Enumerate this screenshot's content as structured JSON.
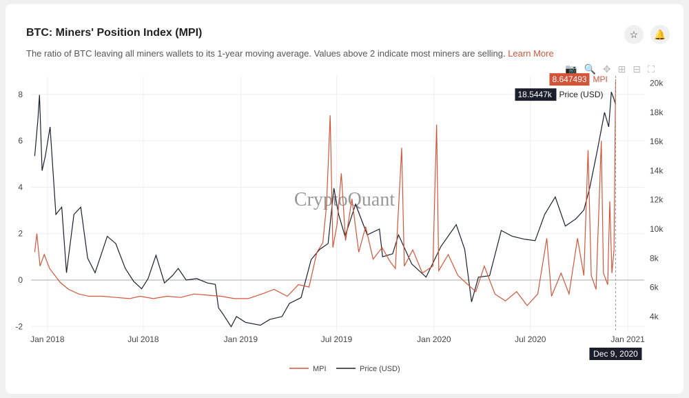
{
  "header": {
    "title": "BTC: Miners' Position Index (MPI)",
    "description": "The ratio of BTC leaving all miners wallets to its 1-year moving average. Values above 2 indicate most miners are selling.",
    "learn_more": "Learn More"
  },
  "watermark": "CryptoQuant",
  "tooltip": {
    "mpi_value": "8.647493",
    "mpi_label": "MPI",
    "price_value": "18.5447k",
    "price_label": "Price (USD)",
    "date": "Dec 9, 2020"
  },
  "colors": {
    "mpi": "#d2553a",
    "price": "#1a1f2b"
  },
  "chart_data": {
    "type": "line",
    "title": "BTC: Miners' Position Index (MPI)",
    "x_ticks": [
      "Jan 2018",
      "Jul 2018",
      "Jan 2019",
      "Jul 2019",
      "Jan 2020",
      "Jul 2020",
      "Jan 2021"
    ],
    "x_tick_dates": [
      "2018-01-01",
      "2018-07-01",
      "2019-01-01",
      "2019-07-01",
      "2020-01-01",
      "2020-07-01",
      "2021-01-01"
    ],
    "xlim": [
      "2017-12-01",
      "2021-02-01"
    ],
    "y_left": {
      "ticks": [
        -2,
        0,
        2,
        4,
        6,
        8
      ],
      "lim": [
        -2.2,
        8.8
      ]
    },
    "y_right": {
      "ticks": [
        "4k",
        "6k",
        "8k",
        "10k",
        "12k",
        "14k",
        "16k",
        "18k",
        "20k"
      ],
      "tick_values": [
        4,
        6,
        8,
        10,
        12,
        14,
        16,
        18,
        20
      ],
      "lim": [
        3,
        20.5
      ]
    },
    "legend": [
      "MPI",
      "Price (USD)"
    ],
    "legend_position": "bottom",
    "series": [
      {
        "name": "Price (USD)",
        "axis": "right",
        "unit": "k USD",
        "points": [
          [
            "2017-12-08",
            15
          ],
          [
            "2017-12-14",
            17.5
          ],
          [
            "2017-12-17",
            19.2
          ],
          [
            "2017-12-22",
            14
          ],
          [
            "2017-12-28",
            15
          ],
          [
            "2018-01-06",
            17
          ],
          [
            "2018-01-17",
            11
          ],
          [
            "2018-01-28",
            11.5
          ],
          [
            "2018-02-06",
            7
          ],
          [
            "2018-02-20",
            11
          ],
          [
            "2018-03-05",
            11.5
          ],
          [
            "2018-03-18",
            8
          ],
          [
            "2018-04-01",
            7
          ],
          [
            "2018-04-24",
            9.5
          ],
          [
            "2018-05-10",
            9
          ],
          [
            "2018-05-28",
            7.3
          ],
          [
            "2018-06-13",
            6.4
          ],
          [
            "2018-06-28",
            5.9
          ],
          [
            "2018-07-10",
            6.6
          ],
          [
            "2018-07-25",
            8.2
          ],
          [
            "2018-08-10",
            6.3
          ],
          [
            "2018-08-25",
            6.8
          ],
          [
            "2018-09-05",
            7.3
          ],
          [
            "2018-09-20",
            6.5
          ],
          [
            "2018-10-10",
            6.6
          ],
          [
            "2018-10-30",
            6.3
          ],
          [
            "2018-11-14",
            6.2
          ],
          [
            "2018-11-20",
            4.6
          ],
          [
            "2018-11-28",
            4.2
          ],
          [
            "2018-12-14",
            3.3
          ],
          [
            "2018-12-24",
            4.0
          ],
          [
            "2019-01-10",
            3.6
          ],
          [
            "2019-02-07",
            3.4
          ],
          [
            "2019-02-25",
            3.8
          ],
          [
            "2019-03-20",
            4.0
          ],
          [
            "2019-04-03",
            4.9
          ],
          [
            "2019-04-25",
            5.3
          ],
          [
            "2019-05-14",
            7.9
          ],
          [
            "2019-05-30",
            8.6
          ],
          [
            "2019-06-15",
            9.0
          ],
          [
            "2019-06-26",
            12.8
          ],
          [
            "2019-07-05",
            11
          ],
          [
            "2019-07-17",
            9.5
          ],
          [
            "2019-08-06",
            11.7
          ],
          [
            "2019-08-28",
            9.6
          ],
          [
            "2019-09-20",
            10
          ],
          [
            "2019-09-26",
            8.1
          ],
          [
            "2019-10-15",
            8.3
          ],
          [
            "2019-10-26",
            9.6
          ],
          [
            "2019-11-20",
            7.6
          ],
          [
            "2019-12-17",
            6.7
          ],
          [
            "2020-01-14",
            8.8
          ],
          [
            "2020-02-12",
            10.3
          ],
          [
            "2020-02-28",
            8.6
          ],
          [
            "2020-03-12",
            5.0
          ],
          [
            "2020-03-25",
            6.7
          ],
          [
            "2020-04-15",
            6.8
          ],
          [
            "2020-05-07",
            9.9
          ],
          [
            "2020-05-28",
            9.5
          ],
          [
            "2020-06-20",
            9.3
          ],
          [
            "2020-07-10",
            9.2
          ],
          [
            "2020-07-28",
            11
          ],
          [
            "2020-08-17",
            12.2
          ],
          [
            "2020-09-05",
            10.2
          ],
          [
            "2020-09-25",
            10.7
          ],
          [
            "2020-10-10",
            11.3
          ],
          [
            "2020-10-21",
            12.8
          ],
          [
            "2020-11-05",
            15.5
          ],
          [
            "2020-11-18",
            18
          ],
          [
            "2020-11-26",
            17
          ],
          [
            "2020-12-01",
            19.4
          ],
          [
            "2020-12-05",
            19
          ],
          [
            "2020-12-09",
            18.5447
          ]
        ]
      },
      {
        "name": "MPI",
        "axis": "left",
        "points": [
          [
            "2017-12-08",
            1.2
          ],
          [
            "2017-12-12",
            2.0
          ],
          [
            "2017-12-18",
            0.6
          ],
          [
            "2017-12-26",
            1.1
          ],
          [
            "2018-01-05",
            0.5
          ],
          [
            "2018-01-15",
            0.2
          ],
          [
            "2018-01-25",
            -0.1
          ],
          [
            "2018-02-10",
            -0.4
          ],
          [
            "2018-03-01",
            -0.6
          ],
          [
            "2018-03-20",
            -0.7
          ],
          [
            "2018-04-15",
            -0.7
          ],
          [
            "2018-05-10",
            -0.75
          ],
          [
            "2018-06-05",
            -0.8
          ],
          [
            "2018-06-25",
            -0.7
          ],
          [
            "2018-07-20",
            -0.8
          ],
          [
            "2018-08-15",
            -0.7
          ],
          [
            "2018-09-10",
            -0.75
          ],
          [
            "2018-10-05",
            -0.6
          ],
          [
            "2018-10-30",
            -0.65
          ],
          [
            "2018-11-25",
            -0.7
          ],
          [
            "2018-12-20",
            -0.8
          ],
          [
            "2019-01-15",
            -0.8
          ],
          [
            "2019-02-10",
            -0.6
          ],
          [
            "2019-03-05",
            -0.4
          ],
          [
            "2019-03-30",
            -0.7
          ],
          [
            "2019-04-20",
            -0.2
          ],
          [
            "2019-05-10",
            -0.3
          ],
          [
            "2019-05-25",
            1.2
          ],
          [
            "2019-06-05",
            1.6
          ],
          [
            "2019-06-12",
            3.2
          ],
          [
            "2019-06-19",
            7.1
          ],
          [
            "2019-06-24",
            1.4
          ],
          [
            "2019-07-02",
            2.4
          ],
          [
            "2019-07-10",
            4.6
          ],
          [
            "2019-07-18",
            1.7
          ],
          [
            "2019-07-30",
            3.5
          ],
          [
            "2019-08-12",
            1.2
          ],
          [
            "2019-08-25",
            2.3
          ],
          [
            "2019-09-08",
            0.9
          ],
          [
            "2019-09-25",
            1.4
          ],
          [
            "2019-10-10",
            0.8
          ],
          [
            "2019-10-20",
            0.5
          ],
          [
            "2019-11-01",
            5.7
          ],
          [
            "2019-11-06",
            0.6
          ],
          [
            "2019-11-22",
            1.3
          ],
          [
            "2019-12-10",
            0.3
          ],
          [
            "2019-12-30",
            0.6
          ],
          [
            "2020-01-06",
            6.7
          ],
          [
            "2020-01-10",
            0.4
          ],
          [
            "2020-01-28",
            1.1
          ],
          [
            "2020-02-15",
            0.2
          ],
          [
            "2020-03-05",
            -0.2
          ],
          [
            "2020-03-20",
            -0.5
          ],
          [
            "2020-04-05",
            0.6
          ],
          [
            "2020-04-25",
            -0.6
          ],
          [
            "2020-05-15",
            -0.9
          ],
          [
            "2020-06-05",
            -0.5
          ],
          [
            "2020-06-25",
            -1.1
          ],
          [
            "2020-07-15",
            -0.6
          ],
          [
            "2020-08-01",
            1.8
          ],
          [
            "2020-08-10",
            -0.7
          ],
          [
            "2020-08-28",
            0.3
          ],
          [
            "2020-09-12",
            -0.6
          ],
          [
            "2020-09-28",
            1.8
          ],
          [
            "2020-10-10",
            0.2
          ],
          [
            "2020-10-18",
            5.6
          ],
          [
            "2020-10-24",
            0.2
          ],
          [
            "2020-11-02",
            -0.4
          ],
          [
            "2020-11-12",
            6.0
          ],
          [
            "2020-11-16",
            0.3
          ],
          [
            "2020-11-24",
            -0.2
          ],
          [
            "2020-11-28",
            3.4
          ],
          [
            "2020-12-02",
            0.3
          ],
          [
            "2020-12-06",
            1.3
          ],
          [
            "2020-12-09",
            8.647493
          ]
        ]
      }
    ]
  }
}
